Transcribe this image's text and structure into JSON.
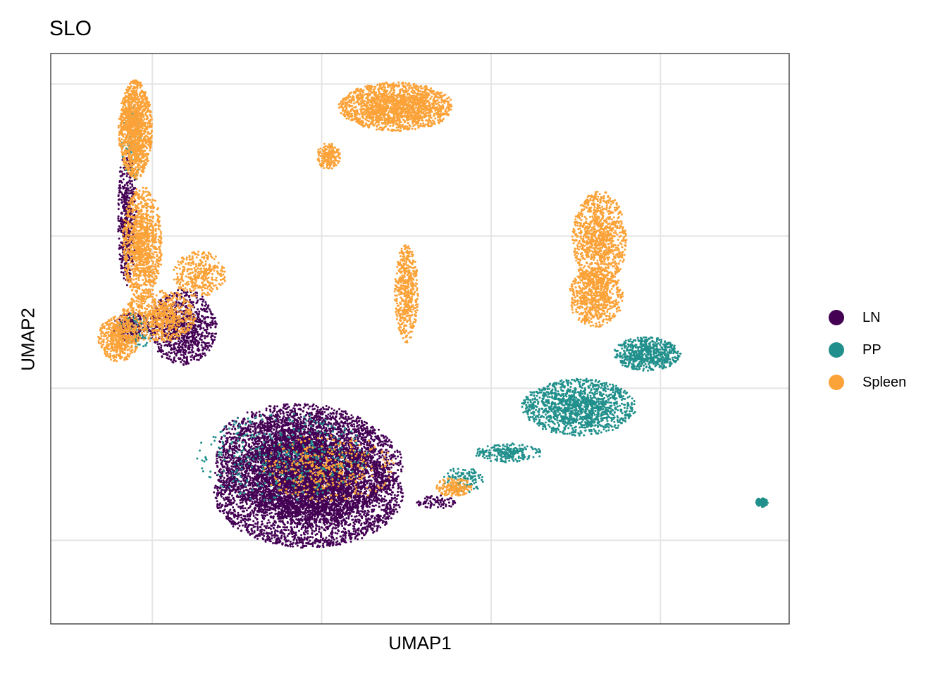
{
  "chart_data": {
    "type": "scatter",
    "title": "SLO",
    "xlabel": "UMAP1",
    "ylabel": "UMAP2",
    "grid": true,
    "legend_position": "right",
    "xlim": [
      -3.0,
      18.8
    ],
    "ylim": [
      -2.2,
      12.8
    ],
    "x_grid_values": [
      0,
      5,
      10,
      15
    ],
    "y_grid_values": [
      0,
      4,
      8,
      12
    ],
    "series": [
      {
        "name": "LN",
        "color": "#440154",
        "clusters": [
          {
            "cx": 4.6,
            "cy": 1.2,
            "rx": 2.8,
            "ry": 1.4,
            "n": 4200
          },
          {
            "cx": 4.6,
            "cy": 2.0,
            "rx": 2.8,
            "ry": 1.4,
            "n": 3000
          },
          {
            "cx": 4.3,
            "cy": 2.6,
            "rx": 2.4,
            "ry": 1.0,
            "n": 1500
          },
          {
            "cx": 0.9,
            "cy": 5.6,
            "rx": 1.0,
            "ry": 1.0,
            "n": 900
          },
          {
            "cx": -0.6,
            "cy": 5.6,
            "rx": 0.55,
            "ry": 0.4,
            "n": 220
          },
          {
            "cx": -0.75,
            "cy": 8.5,
            "rx": 0.28,
            "ry": 1.8,
            "n": 500
          },
          {
            "cx": 8.4,
            "cy": 1.0,
            "rx": 0.6,
            "ry": 0.18,
            "n": 80
          }
        ]
      },
      {
        "name": "PP",
        "color": "#21908C",
        "clusters": [
          {
            "cx": 12.6,
            "cy": 3.5,
            "rx": 1.7,
            "ry": 0.75,
            "n": 1400
          },
          {
            "cx": 14.6,
            "cy": 4.9,
            "rx": 1.0,
            "ry": 0.45,
            "n": 650
          },
          {
            "cx": 10.5,
            "cy": 2.3,
            "rx": 1.0,
            "ry": 0.25,
            "n": 220
          },
          {
            "cx": 9.2,
            "cy": 1.6,
            "rx": 0.6,
            "ry": 0.35,
            "n": 120
          },
          {
            "cx": 18.0,
            "cy": 1.0,
            "rx": 0.18,
            "ry": 0.12,
            "n": 160
          },
          {
            "cx": 3.8,
            "cy": 2.2,
            "rx": 2.6,
            "ry": 1.2,
            "n": 400
          },
          {
            "cx": -0.6,
            "cy": 10.5,
            "rx": 0.3,
            "ry": 1.2,
            "n": 90
          },
          {
            "cx": -0.5,
            "cy": 5.5,
            "rx": 0.5,
            "ry": 0.5,
            "n": 80
          }
        ]
      },
      {
        "name": "Spleen",
        "color": "#FBA238",
        "clusters": [
          {
            "cx": -0.5,
            "cy": 10.8,
            "rx": 0.5,
            "ry": 1.3,
            "n": 1300
          },
          {
            "cx": -0.3,
            "cy": 7.8,
            "rx": 0.6,
            "ry": 1.5,
            "n": 1100
          },
          {
            "cx": 0.2,
            "cy": 5.9,
            "rx": 1.1,
            "ry": 0.7,
            "n": 700
          },
          {
            "cx": -1.0,
            "cy": 5.3,
            "rx": 0.6,
            "ry": 0.6,
            "n": 500
          },
          {
            "cx": 1.4,
            "cy": 7.0,
            "rx": 0.8,
            "ry": 0.6,
            "n": 350
          },
          {
            "cx": 7.2,
            "cy": 11.4,
            "rx": 1.7,
            "ry": 0.65,
            "n": 1800
          },
          {
            "cx": 13.2,
            "cy": 7.9,
            "rx": 0.8,
            "ry": 1.3,
            "n": 1100
          },
          {
            "cx": 13.1,
            "cy": 6.4,
            "rx": 0.8,
            "ry": 0.8,
            "n": 700
          },
          {
            "cx": 7.5,
            "cy": 6.5,
            "rx": 0.35,
            "ry": 1.3,
            "n": 500
          },
          {
            "cx": 5.2,
            "cy": 10.1,
            "rx": 0.35,
            "ry": 0.35,
            "n": 180
          },
          {
            "cx": 8.9,
            "cy": 1.4,
            "rx": 0.55,
            "ry": 0.25,
            "n": 180
          },
          {
            "cx": 5.2,
            "cy": 1.9,
            "rx": 2.0,
            "ry": 0.9,
            "n": 350
          }
        ]
      }
    ],
    "legend": [
      {
        "label": "LN",
        "color": "#440154"
      },
      {
        "label": "PP",
        "color": "#21908C"
      },
      {
        "label": "Spleen",
        "color": "#FBA238"
      }
    ]
  }
}
